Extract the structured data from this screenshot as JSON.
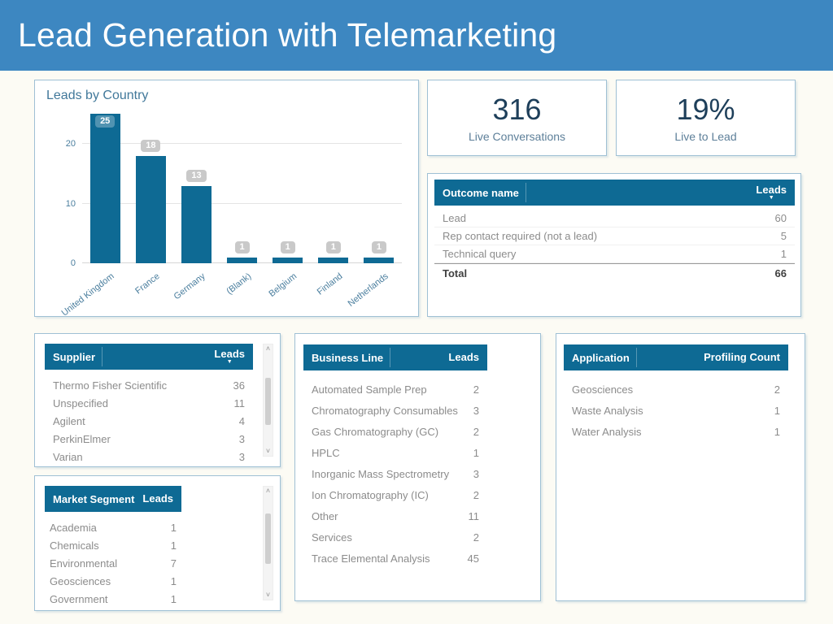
{
  "header": {
    "title": "Lead Generation with Telemarketing"
  },
  "colors": {
    "banner_blue": "#3d87c1",
    "teal": "#0e6a94",
    "kpi_number": "#1e3f5a",
    "axis_text": "#4a7e9e",
    "page_background": "#fcfbf4"
  },
  "icons": {
    "sort_desc": "▼",
    "scroll_up": "˄",
    "scroll_down": "˅"
  },
  "chart_data": {
    "type": "bar",
    "title": "Leads by Country",
    "categories": [
      "United Kingdom",
      "France",
      "Germany",
      "(Blank)",
      "Belgium",
      "Finland",
      "Netherlands"
    ],
    "values": [
      25,
      18,
      13,
      1,
      1,
      1,
      1
    ],
    "data_labels": [
      25,
      18,
      13,
      1,
      1,
      1,
      1
    ],
    "xlabel": "",
    "ylabel": "",
    "y_ticks": [
      0,
      10,
      20
    ],
    "ylim": [
      0,
      26
    ],
    "grid": "horizontal",
    "legend": "none",
    "bar_color": "#0e6a94"
  },
  "kpis": [
    {
      "value": "316",
      "label": "Live Conversations"
    },
    {
      "value": "19%",
      "label": "Live to Lead"
    }
  ],
  "tables": {
    "outcome": {
      "columns": [
        "Outcome name",
        "Leads"
      ],
      "sorted_desc_by": "Leads",
      "rows": [
        {
          "label": "Lead",
          "value": "60"
        },
        {
          "label": "Rep contact required (not a lead)",
          "value": "5"
        },
        {
          "label": "Technical query",
          "value": "1"
        }
      ],
      "total": {
        "label": "Total",
        "value": "66"
      }
    },
    "supplier": {
      "columns": [
        "Supplier",
        "Leads"
      ],
      "sorted_desc_by": "Leads",
      "scrollable": true,
      "rows": [
        {
          "label": "Thermo Fisher Scientific",
          "value": "36"
        },
        {
          "label": "Unspecified",
          "value": "11"
        },
        {
          "label": "Agilent",
          "value": "4"
        },
        {
          "label": "PerkinElmer",
          "value": "3"
        },
        {
          "label": "Varian",
          "value": "3"
        }
      ]
    },
    "market_segment": {
      "columns": [
        "Market Segment",
        "Leads"
      ],
      "scrollable": true,
      "rows": [
        {
          "label": "Academia",
          "value": "1"
        },
        {
          "label": "Chemicals",
          "value": "1"
        },
        {
          "label": "Environmental",
          "value": "7"
        },
        {
          "label": "Geosciences",
          "value": "1"
        },
        {
          "label": "Government",
          "value": "1"
        }
      ]
    },
    "business_line": {
      "columns": [
        "Business Line",
        "Leads"
      ],
      "rows": [
        {
          "label": "Automated Sample Prep",
          "value": "2"
        },
        {
          "label": "Chromatography Consumables",
          "value": "3"
        },
        {
          "label": "Gas Chromatography (GC)",
          "value": "2"
        },
        {
          "label": "HPLC",
          "value": "1"
        },
        {
          "label": "Inorganic Mass Spectrometry",
          "value": "3"
        },
        {
          "label": "Ion Chromatography (IC)",
          "value": "2"
        },
        {
          "label": "Other",
          "value": "11"
        },
        {
          "label": "Services",
          "value": "2"
        },
        {
          "label": "Trace Elemental Analysis",
          "value": "45"
        }
      ]
    },
    "application": {
      "columns": [
        "Application",
        "Profiling Count"
      ],
      "rows": [
        {
          "label": "Geosciences",
          "value": "2"
        },
        {
          "label": "Waste Analysis",
          "value": "1"
        },
        {
          "label": "Water Analysis",
          "value": "1"
        }
      ]
    }
  }
}
